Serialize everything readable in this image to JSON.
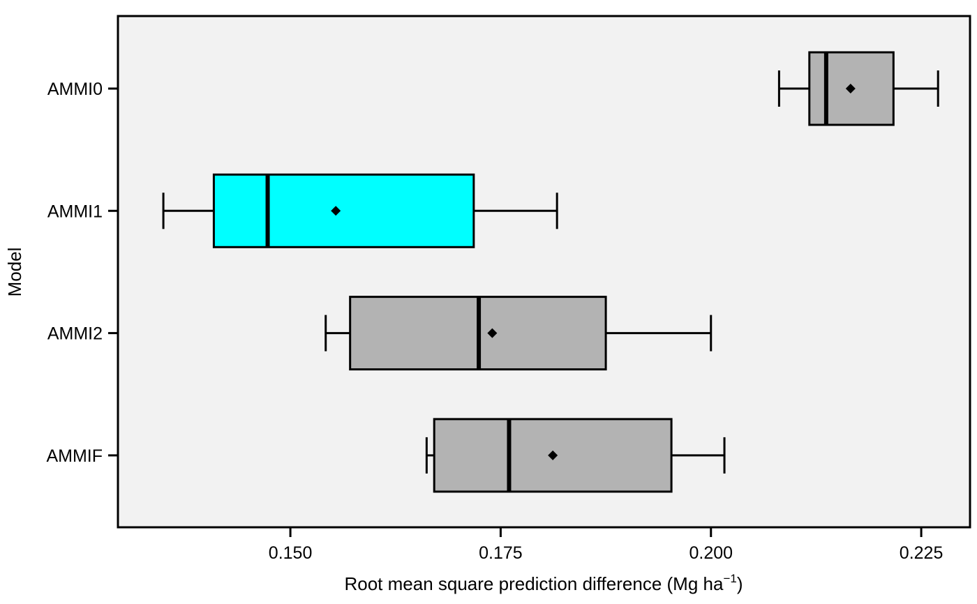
{
  "chart_data": {
    "type": "boxplot",
    "orientation": "horizontal",
    "title": "",
    "xlabel": "Root mean square prediction difference (Mg ha",
    "xlabel_sup": "−1",
    "xlabel_close": ")",
    "ylabel": "Model",
    "xlim": [
      0.1295,
      0.2308
    ],
    "xticks": [
      0.15,
      0.175,
      0.2,
      0.225
    ],
    "xtick_labels": [
      "0.150",
      "0.175",
      "0.200",
      "0.225"
    ],
    "grid": false,
    "legend": "none",
    "categories": [
      "AMMI0",
      "AMMI1",
      "AMMI2",
      "AMMIF"
    ],
    "boxes": [
      {
        "label": "AMMI0",
        "whisker_low": 0.2081,
        "q1": 0.2117,
        "median": 0.2137,
        "q3": 0.2217,
        "whisker_high": 0.227,
        "mean": 0.2166,
        "color": "#b3b3b3"
      },
      {
        "label": "AMMI1",
        "whisker_low": 0.1349,
        "q1": 0.1409,
        "median": 0.1473,
        "q3": 0.1718,
        "whisker_high": 0.1817,
        "mean": 0.1554,
        "color": "#00ffff"
      },
      {
        "label": "AMMI2",
        "whisker_low": 0.1542,
        "q1": 0.1571,
        "median": 0.1724,
        "q3": 0.1875,
        "whisker_high": 0.2,
        "mean": 0.174,
        "color": "#b3b3b3"
      },
      {
        "label": "AMMIF",
        "whisker_low": 0.1662,
        "q1": 0.1671,
        "median": 0.176,
        "q3": 0.1953,
        "whisker_high": 0.2016,
        "mean": 0.1812,
        "color": "#b3b3b3"
      }
    ],
    "panel_background": "#f2f2f2"
  }
}
